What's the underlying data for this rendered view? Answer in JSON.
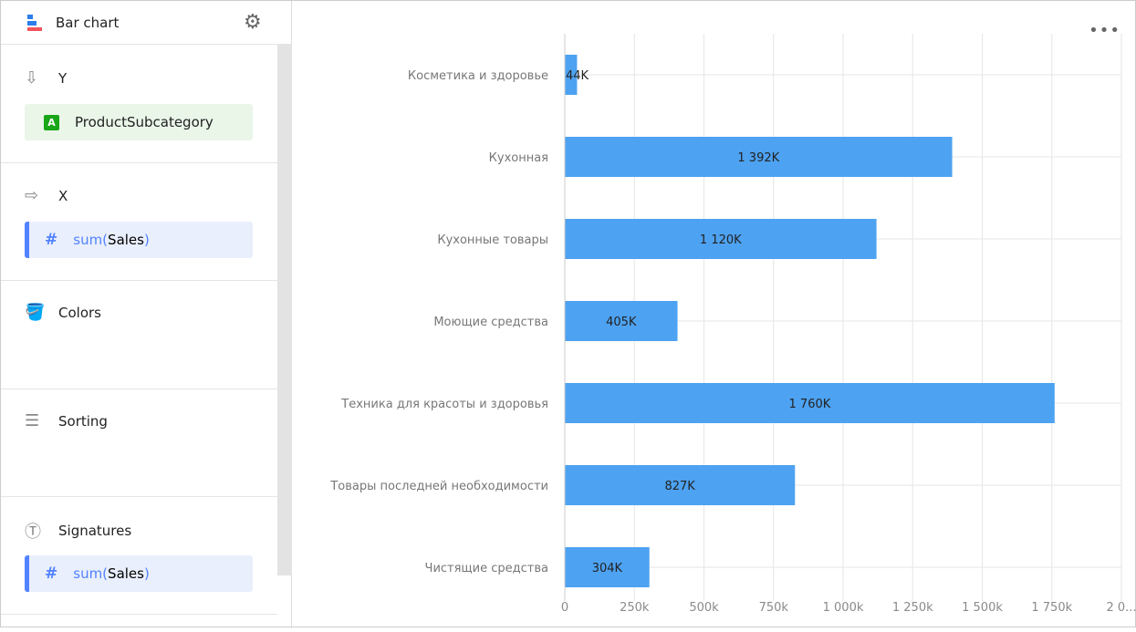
{
  "sidebar": {
    "title": "Bar chart",
    "sections": {
      "y": {
        "label": "Y",
        "field": "ProductSubcategory",
        "field_type": "A"
      },
      "x": {
        "label": "X",
        "field_fn": "sum(",
        "field_name": "Sales",
        "field_close": ")"
      },
      "colors": {
        "label": "Colors"
      },
      "sorting": {
        "label": "Sorting"
      },
      "signatures": {
        "label": "Signatures",
        "field_fn": "sum(",
        "field_name": "Sales",
        "field_close": ")"
      }
    }
  },
  "chart_data": {
    "type": "bar",
    "orientation": "horizontal",
    "categories": [
      "Косметика и здоровье",
      "Кухонная",
      "Кухонные товары",
      "Моющие средства",
      "Техника для красоты и здоровья",
      "Товары последней необходимости",
      "Чистящие средства"
    ],
    "values": [
      44,
      1392,
      1120,
      405,
      1760,
      827,
      304
    ],
    "data_labels": [
      "44K",
      "1 392K",
      "1 120K",
      "405K",
      "1 760K",
      "827K",
      "304K"
    ],
    "xlim": [
      0,
      2000
    ],
    "x_ticks": [
      0,
      250,
      500,
      750,
      1000,
      1250,
      1500,
      1750,
      2000
    ],
    "x_tick_labels": [
      "0",
      "250k",
      "500k",
      "750k",
      "1 000k",
      "1 250k",
      "1 500k",
      "1 750k",
      "2 0..."
    ],
    "grid": true,
    "bar_color": "#4da2f1"
  }
}
